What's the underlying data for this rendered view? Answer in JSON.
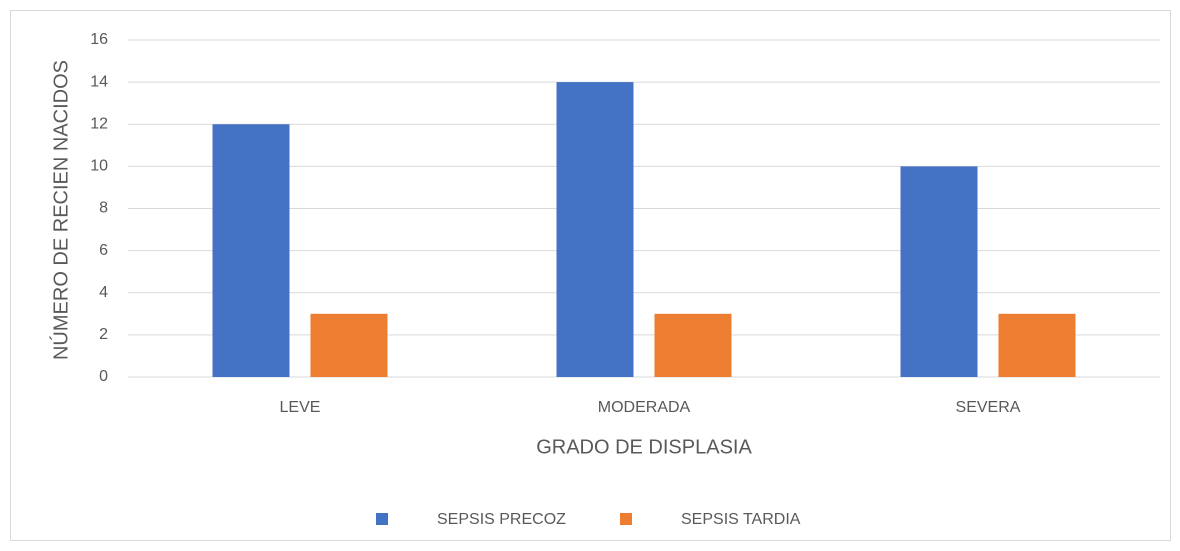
{
  "chart_data": {
    "type": "bar",
    "x_label": "GRADO DE DISPLASIA",
    "y_label": "NÚMERO DE RECIEN NACIDOS",
    "categories": [
      "LEVE",
      "MODERADA",
      "SEVERA"
    ],
    "series": [
      {
        "name": "SEPSIS PRECOZ",
        "color": "#4472c4",
        "values": [
          12,
          14,
          10
        ]
      },
      {
        "name": "SEPSIS TARDIA",
        "color": "#ed7d31",
        "values": [
          3,
          3,
          3
        ]
      }
    ],
    "ylim": [
      0,
      16
    ],
    "yticks": [
      0,
      2,
      4,
      6,
      8,
      10,
      12,
      14,
      16
    ],
    "grid": true,
    "legend": "bottom"
  }
}
